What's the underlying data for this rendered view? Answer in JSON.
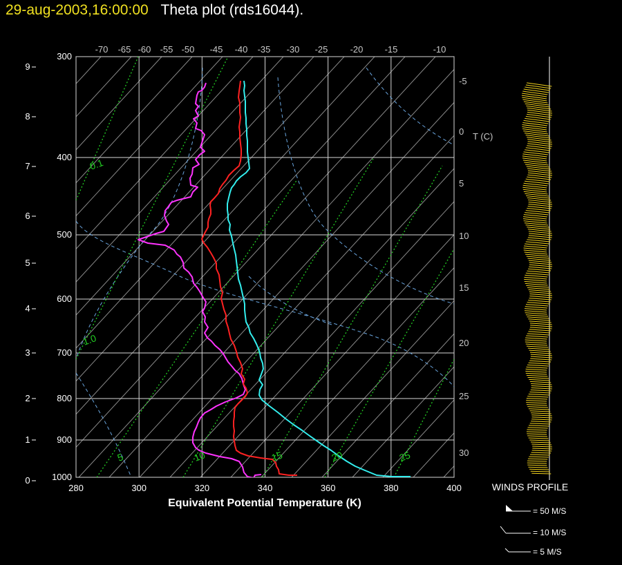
{
  "title": {
    "date": "29-aug-2003,16:00:00",
    "text": "Theta plot (rds16044)."
  },
  "chart_data": {
    "type": "line",
    "xlabel": "Equivalent Potential Temperature (K)",
    "xlim": [
      280,
      400
    ],
    "x_ticks": [
      "280",
      "300",
      "320",
      "340",
      "360",
      "380",
      "400"
    ],
    "pressure_ticks": [
      "300",
      "400",
      "500",
      "600",
      "700",
      "800",
      "900",
      "1000"
    ],
    "height_ticks": [
      "0",
      "1",
      "2",
      "3",
      "4",
      "5",
      "6",
      "7",
      "8",
      "9"
    ],
    "top_temp_ticks": [
      "-70",
      "-65",
      "-60",
      "-55",
      "-50",
      "-45",
      "-40",
      "-35",
      "-30",
      "-25",
      "-20",
      "-15",
      "-10"
    ],
    "right_temp_ticks": [
      "-5",
      "0",
      "5",
      "10",
      "15",
      "20",
      "25",
      "30"
    ],
    "right_temp_label": "T (C)",
    "mixing_ratio_labels": [
      "0.1",
      "1.0",
      "5",
      "10",
      "15",
      "20",
      "25"
    ],
    "series": [
      {
        "color": "#ff33ff",
        "points": [
          [
            298,
            120
          ],
          [
            296,
            126
          ],
          [
            292,
            131
          ],
          [
            287,
            133
          ],
          [
            285,
            138
          ],
          [
            283,
            150
          ],
          [
            287,
            154
          ],
          [
            283,
            160
          ],
          [
            287,
            168
          ],
          [
            280,
            172
          ],
          [
            285,
            178
          ],
          [
            283,
            186
          ],
          [
            291,
            189
          ],
          [
            296,
            195
          ],
          [
            294,
            201
          ],
          [
            290,
            213
          ],
          [
            296,
            219
          ],
          [
            289,
            224
          ],
          [
            283,
            231
          ],
          [
            288,
            238
          ],
          [
            279,
            243
          ],
          [
            278,
            252
          ],
          [
            275,
            258
          ],
          [
            276,
            268
          ],
          [
            286,
            271
          ],
          [
            279,
            278
          ],
          [
            276,
            285
          ],
          [
            256,
            290
          ],
          [
            248,
            293
          ],
          [
            243,
            300
          ],
          [
            239,
            305
          ],
          [
            238,
            312
          ],
          [
            241,
            320
          ],
          [
            244,
            325
          ],
          [
            237,
            335
          ],
          [
            226,
            338
          ],
          [
            200,
            347
          ],
          [
            214,
            352
          ],
          [
            239,
            355
          ],
          [
            252,
            362
          ],
          [
            256,
            368
          ],
          [
            261,
            372
          ],
          [
            265,
            380
          ],
          [
            266,
            388
          ],
          [
            273,
            394
          ],
          [
            278,
            401
          ],
          [
            280,
            410
          ],
          [
            285,
            416
          ],
          [
            289,
            422
          ],
          [
            294,
            431
          ],
          [
            298,
            437
          ],
          [
            296,
            446
          ],
          [
            293,
            451
          ],
          [
            297,
            459
          ],
          [
            296,
            466
          ],
          [
            301,
            474
          ],
          [
            296,
            482
          ],
          [
            300,
            489
          ],
          [
            306,
            494
          ],
          [
            311,
            500
          ],
          [
            318,
            506
          ],
          [
            323,
            512
          ],
          [
            327,
            519
          ],
          [
            330,
            524
          ],
          [
            336,
            531
          ],
          [
            340,
            536
          ],
          [
            346,
            541
          ],
          [
            350,
            548
          ],
          [
            352,
            556
          ],
          [
            355,
            564
          ],
          [
            352,
            571
          ],
          [
            342,
            576
          ],
          [
            326,
            582
          ],
          [
            313,
            588
          ],
          [
            305,
            593
          ],
          [
            296,
            598
          ],
          [
            290,
            605
          ],
          [
            287,
            611
          ],
          [
            284,
            619
          ],
          [
            281,
            625
          ],
          [
            279,
            633
          ],
          [
            279,
            641
          ],
          [
            283,
            648
          ],
          [
            288,
            652
          ],
          [
            298,
            656
          ],
          [
            318,
            661
          ],
          [
            335,
            664
          ],
          [
            346,
            668
          ],
          [
            351,
            676
          ],
          [
            353,
            684
          ],
          [
            358,
            690
          ],
          [
            367,
            692
          ],
          [
            369,
            688
          ],
          [
            378,
            687
          ]
        ]
      },
      {
        "color": "#ff2222",
        "points": [
          [
            348,
            117
          ],
          [
            347,
            125
          ],
          [
            346,
            132
          ],
          [
            345,
            141
          ],
          [
            347,
            149
          ],
          [
            347,
            156
          ],
          [
            347,
            163
          ],
          [
            348,
            170
          ],
          [
            347,
            177
          ],
          [
            346,
            184
          ],
          [
            347,
            191
          ],
          [
            347,
            199
          ],
          [
            348,
            208
          ],
          [
            349,
            216
          ],
          [
            349,
            224
          ],
          [
            348,
            233
          ],
          [
            346,
            240
          ],
          [
            338,
            247
          ],
          [
            331,
            254
          ],
          [
            327,
            261
          ],
          [
            322,
            267
          ],
          [
            318,
            273
          ],
          [
            316,
            280
          ],
          [
            310,
            287
          ],
          [
            305,
            292
          ],
          [
            304,
            297
          ],
          [
            305,
            304
          ],
          [
            305,
            310
          ],
          [
            302,
            317
          ],
          [
            301,
            322
          ],
          [
            301,
            329
          ],
          [
            297,
            336
          ],
          [
            292,
            346
          ],
          [
            295,
            352
          ],
          [
            300,
            358
          ],
          [
            305,
            366
          ],
          [
            309,
            373
          ],
          [
            313,
            381
          ],
          [
            313,
            389
          ],
          [
            317,
            398
          ],
          [
            318,
            406
          ],
          [
            319,
            415
          ],
          [
            322,
            424
          ],
          [
            320,
            432
          ],
          [
            322,
            440
          ],
          [
            324,
            448
          ],
          [
            327,
            456
          ],
          [
            327,
            465
          ],
          [
            330,
            474
          ],
          [
            332,
            483
          ],
          [
            334,
            491
          ],
          [
            339,
            500
          ],
          [
            342,
            509
          ],
          [
            344,
            517
          ],
          [
            348,
            525
          ],
          [
            351,
            534
          ],
          [
            349,
            541
          ],
          [
            354,
            549
          ],
          [
            352,
            556
          ],
          [
            356,
            562
          ],
          [
            358,
            569
          ],
          [
            355,
            574
          ],
          [
            350,
            579
          ],
          [
            344,
            585
          ],
          [
            340,
            590
          ],
          [
            339,
            597
          ],
          [
            339,
            603
          ],
          [
            338,
            610
          ],
          [
            338,
            617
          ],
          [
            339,
            624
          ],
          [
            338,
            632
          ],
          [
            339,
            638
          ],
          [
            340,
            645
          ],
          [
            342,
            652
          ],
          [
            348,
            656
          ],
          [
            359,
            660
          ],
          [
            377,
            663
          ],
          [
            394,
            665
          ],
          [
            399,
            670
          ],
          [
            400,
            675
          ],
          [
            403,
            680
          ],
          [
            404,
            686
          ],
          [
            418,
            688
          ],
          [
            430,
            688
          ]
        ]
      },
      {
        "color": "#33eeee",
        "points": [
          [
            353,
            117
          ],
          [
            354,
            124
          ],
          [
            353,
            131
          ],
          [
            354,
            139
          ],
          [
            355,
            147
          ],
          [
            355,
            155
          ],
          [
            355,
            163
          ],
          [
            356,
            171
          ],
          [
            356,
            179
          ],
          [
            357,
            187
          ],
          [
            357,
            196
          ],
          [
            358,
            204
          ],
          [
            358,
            212
          ],
          [
            358,
            220
          ],
          [
            359,
            228
          ],
          [
            360,
            236
          ],
          [
            361,
            244
          ],
          [
            356,
            250
          ],
          [
            348,
            256
          ],
          [
            342,
            262
          ],
          [
            339,
            267
          ],
          [
            335,
            272
          ],
          [
            333,
            278
          ],
          [
            331,
            286
          ],
          [
            329,
            295
          ],
          [
            329,
            304
          ],
          [
            330,
            311
          ],
          [
            330,
            318
          ],
          [
            333,
            325
          ],
          [
            332,
            333
          ],
          [
            335,
            342
          ],
          [
            337,
            352
          ],
          [
            339,
            361
          ],
          [
            341,
            369
          ],
          [
            342,
            378
          ],
          [
            343,
            386
          ],
          [
            344,
            395
          ],
          [
            345,
            404
          ],
          [
            348,
            413
          ],
          [
            350,
            422
          ],
          [
            352,
            431
          ],
          [
            354,
            440
          ],
          [
            354,
            449
          ],
          [
            355,
            458
          ],
          [
            356,
            466
          ],
          [
            360,
            474
          ],
          [
            362,
            482
          ],
          [
            367,
            490
          ],
          [
            371,
            498
          ],
          [
            374,
            505
          ],
          [
            376,
            511
          ],
          [
            377,
            518
          ],
          [
            380,
            526
          ],
          [
            381,
            534
          ],
          [
            378,
            542
          ],
          [
            375,
            550
          ],
          [
            380,
            557
          ],
          [
            376,
            564
          ],
          [
            375,
            572
          ],
          [
            379,
            579
          ],
          [
            390,
            588
          ],
          [
            402,
            597
          ],
          [
            413,
            606
          ],
          [
            425,
            615
          ],
          [
            437,
            623
          ],
          [
            448,
            631
          ],
          [
            458,
            638
          ],
          [
            468,
            645
          ],
          [
            479,
            652
          ],
          [
            490,
            660
          ],
          [
            502,
            668
          ],
          [
            514,
            675
          ],
          [
            528,
            681
          ],
          [
            545,
            688
          ],
          [
            567,
            690
          ],
          [
            594,
            690
          ]
        ]
      }
    ]
  },
  "winds_profile": {
    "title": "WINDS PROFILE",
    "legend": [
      "= 50 M/S",
      "= 10 M/S",
      "= 5 M/S"
    ]
  }
}
